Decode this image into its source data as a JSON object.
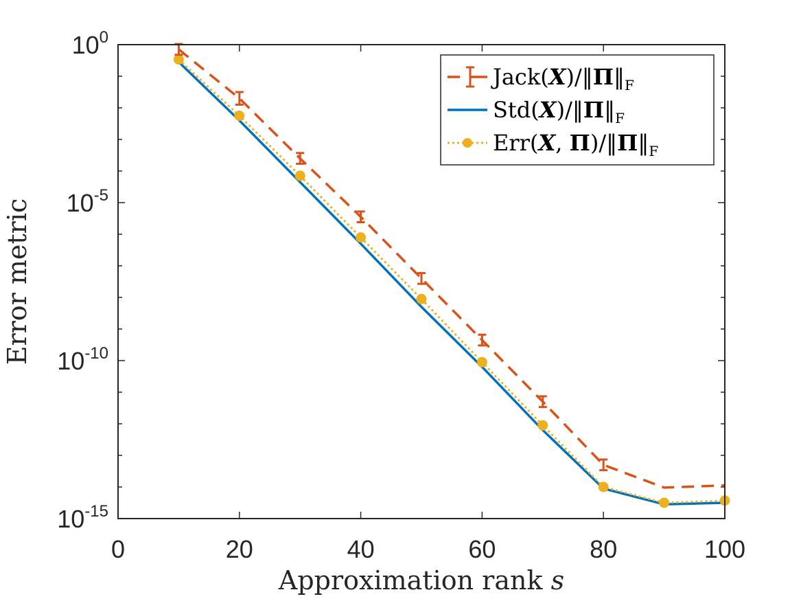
{
  "chart_data": {
    "type": "line",
    "yscale": "log",
    "xlabel": "Approximation rank",
    "xlabel_var": "s",
    "ylabel": "Error metric",
    "xlim": [
      0,
      100
    ],
    "ylim_exponents": [
      -15,
      0
    ],
    "xticks": [
      0,
      20,
      40,
      60,
      80,
      100
    ],
    "xtick_labels": [
      "0",
      "20",
      "40",
      "60",
      "80",
      "100"
    ],
    "yticks": [
      {
        "exponent": 0,
        "base": "10",
        "exp_label": "0"
      },
      {
        "exponent": -5,
        "base": "10",
        "exp_label": "-5"
      },
      {
        "exponent": -10,
        "base": "10",
        "exp_label": "-10"
      },
      {
        "exponent": -15,
        "base": "10",
        "exp_label": "-15"
      }
    ],
    "legend_position": "top-right",
    "x": [
      10,
      20,
      30,
      40,
      50,
      60,
      70,
      80,
      90,
      100
    ],
    "series": [
      {
        "name": "Jack(X)/‖Π‖F",
        "legend": {
          "pre": "Jack(",
          "bx": "X",
          "mid": ")/‖",
          "bp": "Π",
          "end": "‖",
          "sub": "F"
        },
        "color": "#D95319",
        "style": "dashed-errorbar",
        "log10_values": [
          -0.15,
          -1.7,
          -3.6,
          -5.45,
          -7.4,
          -9.35,
          -11.3,
          -13.3,
          -14.02,
          -13.95
        ],
        "log10_err": [
          0.17,
          0.2,
          0.17,
          0.17,
          0.17,
          0.17,
          0.17,
          0.17,
          0,
          0
        ]
      },
      {
        "name": "Std(X)/‖Π‖F",
        "legend": {
          "pre": "Std(",
          "bx": "X",
          "mid": ")/‖",
          "bp": "Π",
          "end": "‖",
          "sub": "F"
        },
        "color": "#0072BD",
        "style": "solid",
        "log10_values": [
          -0.55,
          -2.4,
          -4.35,
          -6.3,
          -8.3,
          -10.2,
          -12.2,
          -14.05,
          -14.55,
          -14.5
        ]
      },
      {
        "name": "Err(X,Π)/‖Π‖F",
        "legend": {
          "pre": "Err(",
          "bx": "X",
          "mid": ", ",
          "bp": "Π",
          "mid2": ")/‖",
          "bp2": "Π",
          "end": "‖",
          "sub": "F"
        },
        "color": "#EDB120",
        "style": "dotted-marker",
        "log10_values": [
          -0.47,
          -2.25,
          -4.15,
          -6.1,
          -8.05,
          -10.05,
          -12.05,
          -14.0,
          -14.5,
          -14.43
        ]
      }
    ]
  }
}
